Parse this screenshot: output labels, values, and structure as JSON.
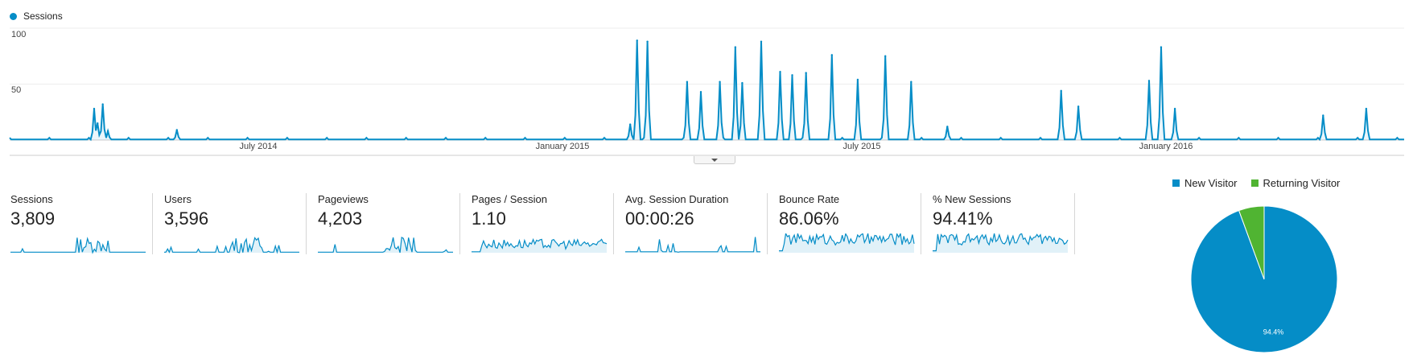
{
  "colors": {
    "sessions": "#058dc7",
    "new_visitor": "#058dc7",
    "returning_visitor": "#50b432"
  },
  "chart_data": [
    {
      "type": "line",
      "title": "",
      "series": [
        {
          "name": "Sessions"
        }
      ],
      "x_tick_labels": [
        "July 2014",
        "January 2015",
        "July 2015",
        "January 2016"
      ],
      "y_tick_labels": [
        "100",
        "50"
      ],
      "ylim": [
        0,
        100
      ],
      "grid": true,
      "legend_position": "top-left",
      "spikes": [
        {
          "x": "2014-05-03",
          "y": 28
        },
        {
          "x": "2014-05-05",
          "y": 15
        },
        {
          "x": "2014-05-08",
          "y": 32
        },
        {
          "x": "2014-05-11",
          "y": 8
        },
        {
          "x": "2014-06-20",
          "y": 9
        },
        {
          "x": "2015-03-10",
          "y": 14
        },
        {
          "x": "2015-03-14",
          "y": 89
        },
        {
          "x": "2015-03-20",
          "y": 88
        },
        {
          "x": "2015-04-12",
          "y": 52
        },
        {
          "x": "2015-04-20",
          "y": 43
        },
        {
          "x": "2015-05-01",
          "y": 52
        },
        {
          "x": "2015-05-10",
          "y": 83
        },
        {
          "x": "2015-05-14",
          "y": 51
        },
        {
          "x": "2015-05-25",
          "y": 88
        },
        {
          "x": "2015-06-05",
          "y": 61
        },
        {
          "x": "2015-06-12",
          "y": 58
        },
        {
          "x": "2015-06-20",
          "y": 60
        },
        {
          "x": "2015-07-05",
          "y": 76
        },
        {
          "x": "2015-07-20",
          "y": 54
        },
        {
          "x": "2015-08-05",
          "y": 75
        },
        {
          "x": "2015-08-20",
          "y": 52
        },
        {
          "x": "2015-09-10",
          "y": 12
        },
        {
          "x": "2015-11-15",
          "y": 44
        },
        {
          "x": "2015-11-25",
          "y": 30
        },
        {
          "x": "2016-01-05",
          "y": 53
        },
        {
          "x": "2016-01-12",
          "y": 83
        },
        {
          "x": "2016-01-20",
          "y": 28
        },
        {
          "x": "2016-04-15",
          "y": 22
        },
        {
          "x": "2016-05-10",
          "y": 28
        }
      ]
    },
    {
      "type": "pie",
      "labels": [
        "New Visitor",
        "Returning Visitor"
      ],
      "values": [
        94.4,
        5.6
      ],
      "data_labels": [
        "94.4%",
        ""
      ],
      "legend_position": "top"
    }
  ],
  "metrics": [
    {
      "label": "Sessions",
      "value": "3,809"
    },
    {
      "label": "Users",
      "value": "3,596"
    },
    {
      "label": "Pageviews",
      "value": "4,203"
    },
    {
      "label": "Pages / Session",
      "value": "1.10"
    },
    {
      "label": "Avg. Session Duration",
      "value": "00:00:26"
    },
    {
      "label": "Bounce Rate",
      "value": "86.06%"
    },
    {
      "label": "% New Sessions",
      "value": "94.41%"
    }
  ]
}
